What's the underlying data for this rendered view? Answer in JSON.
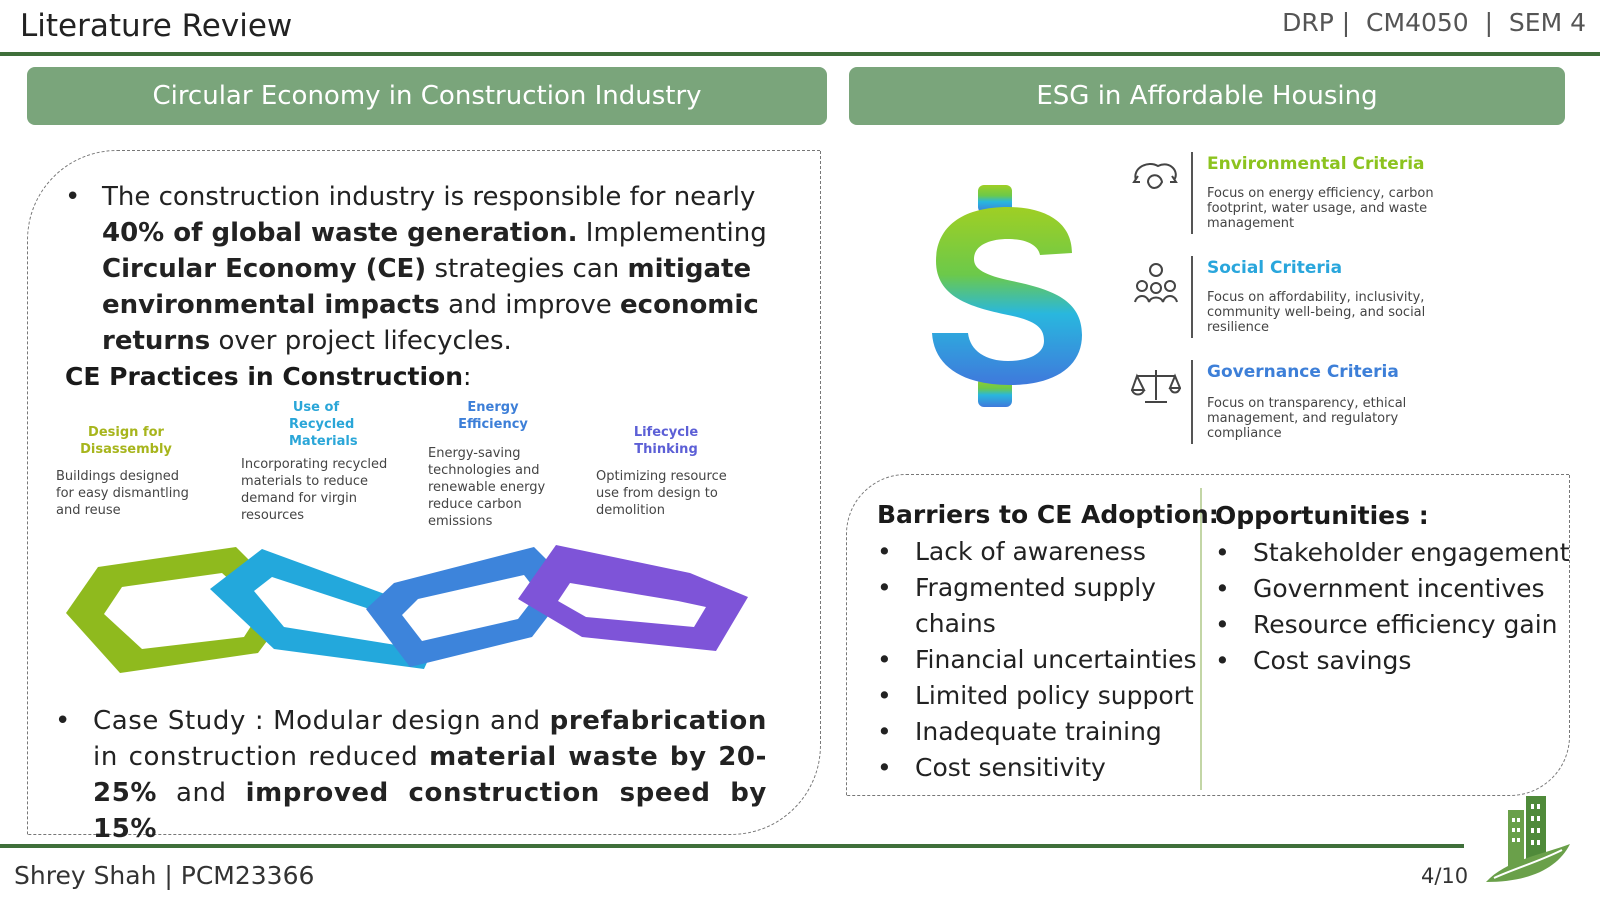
{
  "header": {
    "title": "Literature Review",
    "course_tag": "DRP |  CM4050  |  SEM 4"
  },
  "sections": {
    "ce_title": "Circular Economy in Construction Industry",
    "esg_title": "ESG in Affordable Housing"
  },
  "ce": {
    "intro": {
      "t1": "The construction industry is responsible for nearly ",
      "b1": "40% of global waste generation.",
      "t2": " Implementing ",
      "b2": "Circular Economy (CE)",
      "t3": " strategies can ",
      "b3": "mitigate environmental impacts",
      "t4": " and improve ",
      "b4": "economic returns",
      "t5": " over project lifecycles."
    },
    "practices_heading": "CE Practices in Construction",
    "practices_colon": ":",
    "practices": [
      {
        "title": "Design for Disassembly",
        "desc": "Buildings designed for easy dismantling and reuse",
        "color": "#93b81f"
      },
      {
        "title": "Use of Recycled Materials",
        "desc": "Incorporating recycled materials to reduce demand for virgin resources",
        "color": "#2aa6d8"
      },
      {
        "title": "Energy Efficiency",
        "desc": "Energy-saving technologies and renewable energy reduce carbon emissions",
        "color": "#3d7fd8"
      },
      {
        "title": "Lifecycle Thinking",
        "desc": "Optimizing resource use from design to demolition",
        "color": "#7b55d6"
      }
    ],
    "case": {
      "t1": "Case Study : Modular design and ",
      "b1": "prefabrication",
      "t2": " in construction reduced ",
      "b2": "material waste by 20-25%",
      "t3": " and ",
      "b3": "improved construction speed by 15%"
    }
  },
  "esg": {
    "criteria": [
      {
        "title": "Environmental Criteria",
        "desc": "Focus on energy efficiency, carbon footprint, water usage, and waste management",
        "color": "#8cc31f",
        "icon": "leaf-cloud-icon"
      },
      {
        "title": "Social Criteria",
        "desc": "Focus on affordability, inclusivity, community well-being, and social resilience",
        "color": "#29a6dc",
        "icon": "people-icon"
      },
      {
        "title": "Governance Criteria",
        "desc": "Focus on transparency, ethical management, and regulatory compliance",
        "color": "#3d7fd8",
        "icon": "balance-scale-icon"
      }
    ]
  },
  "barriers": {
    "heading": "Barriers to CE Adoption:",
    "items": [
      "Lack of awareness",
      "Fragmented supply chains",
      "Financial uncertainties",
      "Limited policy support",
      "Inadequate training",
      "Cost sensitivity"
    ]
  },
  "opportunities": {
    "heading": "Opportunities :",
    "items": [
      "Stakeholder engagement",
      "Government incentives",
      "Resource efficiency gain",
      "Cost savings"
    ]
  },
  "footer": {
    "author": "Shrey Shah | PCM23366",
    "page": "4/10"
  },
  "colors": {
    "accent_green": "#3f6f3a",
    "header_green": "#7aa57b"
  }
}
